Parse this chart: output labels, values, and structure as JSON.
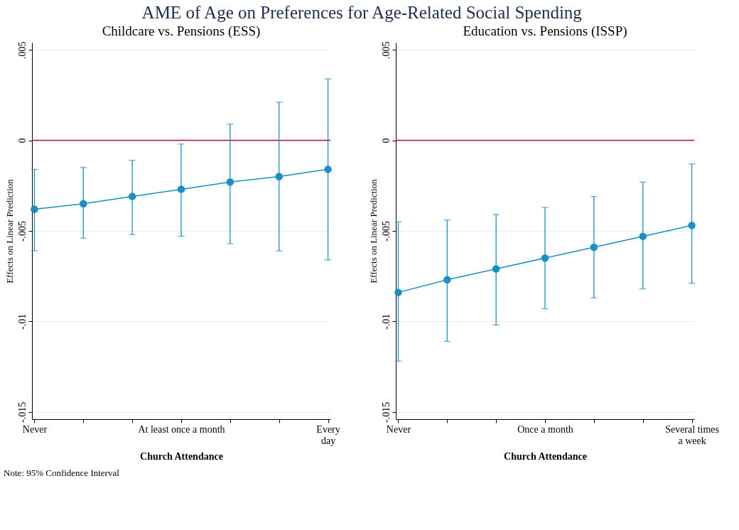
{
  "chart_data": [
    {
      "type": "line",
      "title": "Childcare vs. Pensions (ESS)",
      "xlabel": "Church Attendance",
      "ylabel": "Effects on Linear Prediction",
      "categories": [
        "Never",
        null,
        null,
        "At least once a month",
        null,
        null,
        "Every\nday"
      ],
      "series": [
        {
          "color": "#1a8fc4",
          "values": [
            -0.0038,
            -0.0035,
            -0.0031,
            -0.0027,
            -0.0023,
            -0.002,
            -0.0016
          ],
          "errors": [
            [
              -0.0061,
              -0.0016
            ],
            [
              -0.0054,
              -0.0015
            ],
            [
              -0.0052,
              -0.0011
            ],
            [
              -0.0053,
              -0.0002
            ],
            [
              -0.0057,
              0.0009
            ],
            [
              -0.0061,
              0.0021
            ],
            [
              -0.0066,
              0.0034
            ]
          ]
        }
      ],
      "ylim": [
        -0.0154,
        0.0054
      ],
      "yticks": [
        {
          "value": -0.015,
          "label": "-.015"
        },
        {
          "value": -0.01,
          "label": "-.01"
        },
        {
          "value": -0.005,
          "label": "-.005"
        },
        0,
        {
          "value": 0.005,
          "label": ".005"
        }
      ],
      "ref_lines": [
        {
          "axis": "y",
          "value": 0,
          "color": "#c8102e"
        }
      ],
      "grid": "y",
      "marker": "circle",
      "line_style": "solid",
      "annotations": [
        "AME of Age on Preferences for Age-Related Social Spending",
        "Note: 95% Confidence Interval"
      ]
    },
    {
      "type": "line",
      "title": "Education vs. Pensions (ISSP)",
      "xlabel": "Church Attendance",
      "ylabel": "Effects on Linear Prediction",
      "categories": [
        "Never",
        null,
        null,
        "Once a month",
        null,
        null,
        "Several times\na week"
      ],
      "series": [
        {
          "color": "#1a8fc4",
          "values": [
            -0.0084,
            -0.0077,
            -0.0071,
            -0.0065,
            -0.0059,
            -0.0053,
            -0.0047
          ],
          "errors": [
            [
              -0.0122,
              -0.0045
            ],
            [
              -0.0111,
              -0.0044
            ],
            [
              -0.0102,
              -0.0041
            ],
            [
              -0.0093,
              -0.0037
            ],
            [
              -0.0087,
              -0.0031
            ],
            [
              -0.0082,
              -0.0023
            ],
            [
              -0.0079,
              -0.0013
            ]
          ]
        }
      ],
      "ylim": [
        -0.0154,
        0.0054
      ],
      "yticks": [
        {
          "value": -0.015,
          "label": "-.015"
        },
        {
          "value": -0.01,
          "label": "-.01"
        },
        {
          "value": -0.005,
          "label": "-.005"
        },
        0,
        {
          "value": 0.005,
          "label": ".005"
        }
      ],
      "ref_lines": [
        {
          "axis": "y",
          "value": 0,
          "color": "#c8102e"
        }
      ],
      "grid": "y",
      "marker": "circle",
      "line_style": "solid"
    }
  ]
}
